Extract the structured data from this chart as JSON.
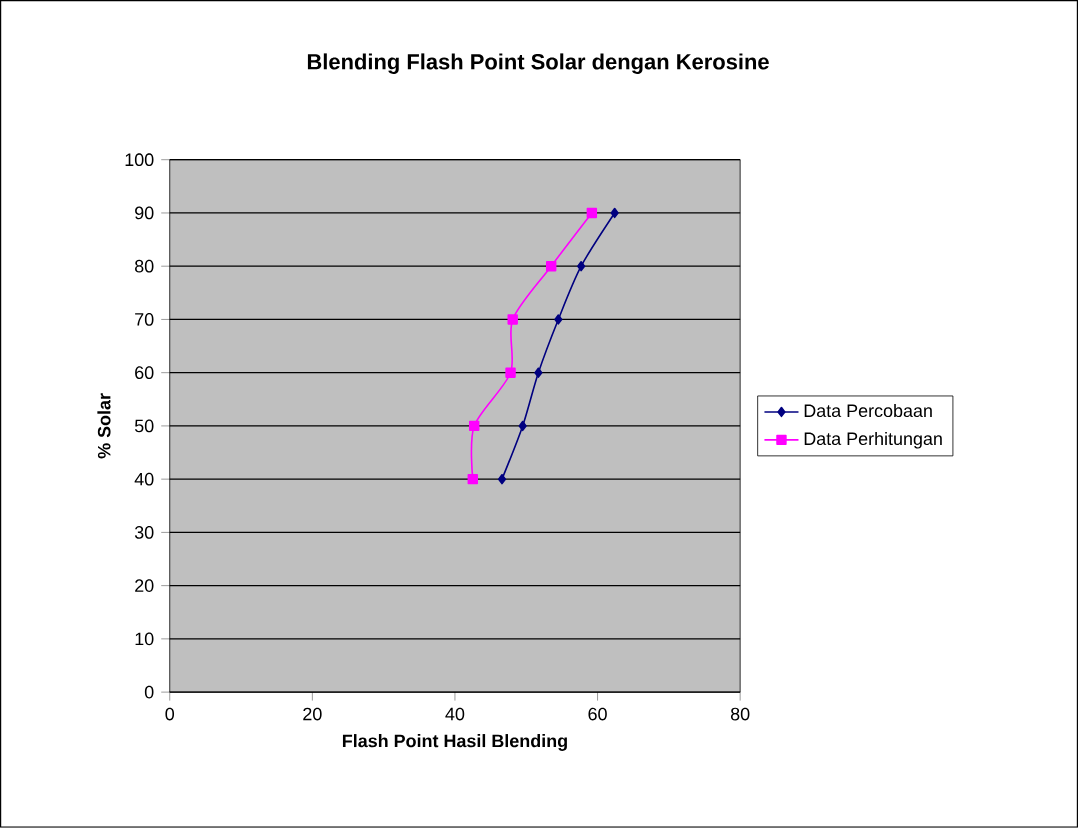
{
  "chart_data": {
    "type": "line",
    "title": "Blending Flash Point Solar dengan Kerosine",
    "xlabel": "Flash Point Hasil Blending",
    "ylabel": "% Solar",
    "series": [
      {
        "name": "Data Percobaan",
        "color": "#000080",
        "marker": "diamond",
        "x": [
          46.6,
          49.5,
          51.7,
          54.5,
          57.7,
          62.4
        ],
        "values": [
          40,
          50,
          60,
          70,
          80,
          90
        ]
      },
      {
        "name": "Data Perhitungan",
        "color": "#ff00ff",
        "marker": "square",
        "x": [
          42.5,
          42.7,
          47.8,
          48.1,
          53.5,
          59.2
        ],
        "values": [
          40,
          50,
          60,
          70,
          80,
          90
        ]
      }
    ],
    "xlim": [
      0,
      80
    ],
    "xticks": [
      0,
      20,
      40,
      60,
      80
    ],
    "ylim": [
      0,
      100
    ],
    "yticks": [
      0,
      10,
      20,
      30,
      40,
      50,
      60,
      70,
      80,
      90,
      100
    ],
    "grid": "y",
    "legend": "right",
    "line_style": "solid"
  }
}
